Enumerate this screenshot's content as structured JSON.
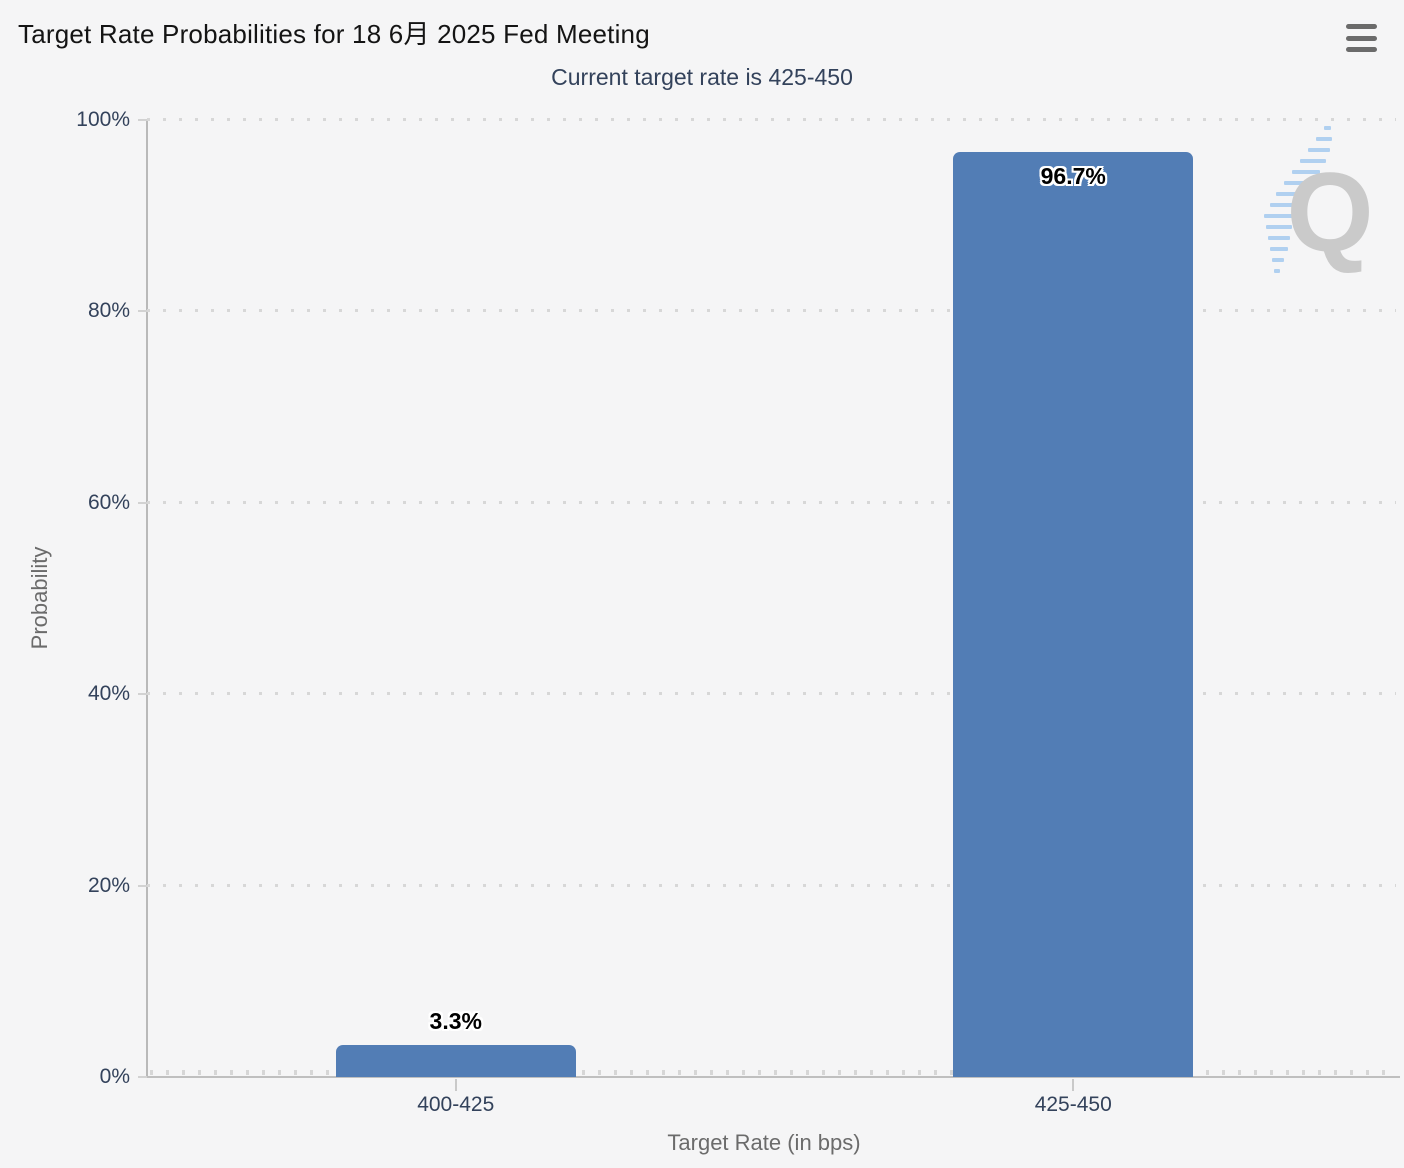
{
  "chart_data": {
    "type": "bar",
    "title": "Target Rate Probabilities for 18 6月 2025 Fed Meeting",
    "subtitle": "Current target rate is 425-450",
    "categories": [
      "400-425",
      "425-450"
    ],
    "values": [
      3.3,
      96.7
    ],
    "value_labels": [
      "3.3%",
      "96.7%"
    ],
    "xlabel": "Target Rate (in bps)",
    "ylabel": "Probability",
    "ylim": [
      0,
      100
    ],
    "yticks": [
      0,
      20,
      40,
      60,
      80,
      100
    ],
    "ytick_labels": [
      "0%",
      "20%",
      "40%",
      "60%",
      "80%",
      "100%"
    ],
    "grid": "horizontal-dotted",
    "legend": "none",
    "bar_color": "#527DB5",
    "label_color": "#33425B",
    "axis_title_color": "#6B6B6B"
  },
  "toolbar": {
    "menu_icon": "hamburger-menu-icon"
  },
  "watermark": {
    "letter": "Q"
  }
}
